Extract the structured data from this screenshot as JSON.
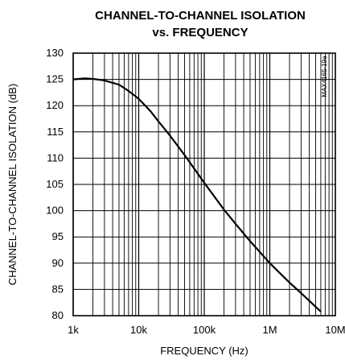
{
  "chart_data": {
    "type": "line",
    "title": "CHANNEL-TO-CHANNEL ISOLATION",
    "subtitle": "vs. FREQUENCY",
    "xlabel": "FREQUENCY (Hz)",
    "ylabel": "CHANNEL-TO-CHANNEL ISOLATION (dB)",
    "part_number": "MAX4165-19a",
    "x_scale": "log",
    "xlim": [
      1000,
      10000000
    ],
    "ylim": [
      80,
      130
    ],
    "x_ticks": [
      {
        "value": 1000,
        "label": "1k"
      },
      {
        "value": 10000,
        "label": "10k"
      },
      {
        "value": 100000,
        "label": "100k"
      },
      {
        "value": 1000000,
        "label": "1M"
      },
      {
        "value": 10000000,
        "label": "10M"
      }
    ],
    "y_ticks": [
      {
        "value": 80,
        "label": "80"
      },
      {
        "value": 85,
        "label": "85"
      },
      {
        "value": 90,
        "label": "90"
      },
      {
        "value": 95,
        "label": "95"
      },
      {
        "value": 100,
        "label": "100"
      },
      {
        "value": 105,
        "label": "105"
      },
      {
        "value": 110,
        "label": "110"
      },
      {
        "value": 115,
        "label": "115"
      },
      {
        "value": 120,
        "label": "120"
      },
      {
        "value": 125,
        "label": "125"
      },
      {
        "value": 130,
        "label": "130"
      }
    ],
    "grid": true,
    "line_color": "#000000",
    "series": [
      {
        "x": [
          1000,
          1500,
          2000,
          3000,
          5000,
          7000,
          10000,
          15000,
          20000,
          30000,
          50000,
          100000,
          200000,
          300000,
          500000,
          1000000,
          2000000,
          3000000,
          5000000,
          6000000
        ],
        "y": [
          125.0,
          125.2,
          125.1,
          124.8,
          124.0,
          122.8,
          121.3,
          119.0,
          117.0,
          114.3,
          110.6,
          105.3,
          100.2,
          97.5,
          94.2,
          90.0,
          86.3,
          84.3,
          81.7,
          80.8
        ]
      }
    ]
  }
}
